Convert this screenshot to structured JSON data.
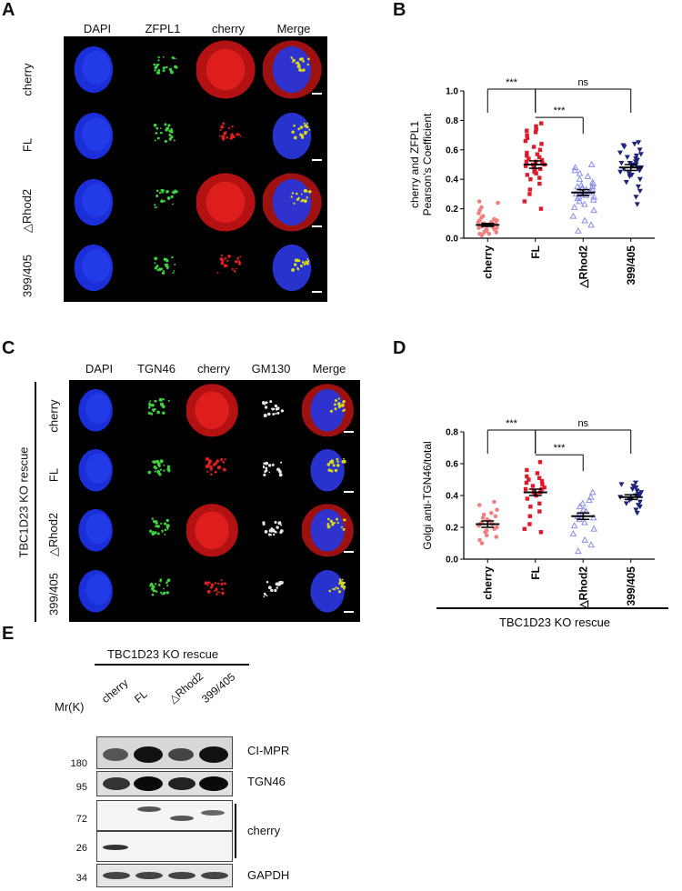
{
  "panels": {
    "A": "A",
    "B": "B",
    "C": "C",
    "D": "D",
    "E": "E"
  },
  "panelA": {
    "columns": [
      "DAPI",
      "ZFPL1",
      "cherry",
      "Merge"
    ],
    "rows": [
      "cherry",
      "FL",
      "△Rhod2",
      "399/405"
    ]
  },
  "panelC": {
    "columns": [
      "DAPI",
      "TGN46",
      "cherry",
      "GM130",
      "Merge"
    ],
    "rows": [
      "cherry",
      "FL",
      "△Rhod2",
      "399/405"
    ],
    "group_label": "TBC1D23 KO rescue"
  },
  "chart_data": [
    {
      "type": "scatter",
      "panel": "B",
      "ylabel": "cherry and ZFPL1\nPearson's Coefficient",
      "ylabel_lines": [
        "cherry and ZFPL1",
        "Pearson's Coefficient"
      ],
      "categories": [
        "cherry",
        "FL",
        "△Rhod2",
        "399/405"
      ],
      "yticks": [
        "0.0",
        "0.2",
        "0.4",
        "0.6",
        "0.8",
        "1.0"
      ],
      "ylim": [
        0,
        1.0
      ],
      "means": [
        0.09,
        0.5,
        0.31,
        0.48
      ],
      "sem": [
        0.01,
        0.025,
        0.02,
        0.02
      ],
      "colors": [
        "#f08080",
        "#e0192b",
        "#8a8ee6",
        "#1c237a"
      ],
      "markers": [
        "circle",
        "square",
        "triangle-up",
        "triangle-down"
      ],
      "points": [
        [
          0.02,
          0.03,
          0.04,
          0.05,
          0.05,
          0.06,
          0.06,
          0.07,
          0.07,
          0.08,
          0.08,
          0.08,
          0.09,
          0.09,
          0.1,
          0.1,
          0.1,
          0.11,
          0.12,
          0.12,
          0.13,
          0.14,
          0.15,
          0.17,
          0.19,
          0.21,
          0.24,
          0.25,
          0.04,
          0.06,
          0.03,
          0.11
        ],
        [
          0.2,
          0.25,
          0.3,
          0.33,
          0.37,
          0.4,
          0.41,
          0.43,
          0.44,
          0.46,
          0.47,
          0.48,
          0.49,
          0.5,
          0.5,
          0.51,
          0.52,
          0.53,
          0.54,
          0.55,
          0.56,
          0.57,
          0.58,
          0.6,
          0.62,
          0.64,
          0.66,
          0.68,
          0.7,
          0.72,
          0.73,
          0.74,
          0.76,
          0.78,
          0.45,
          0.52
        ],
        [
          0.05,
          0.09,
          0.12,
          0.15,
          0.19,
          0.21,
          0.23,
          0.25,
          0.26,
          0.27,
          0.28,
          0.29,
          0.3,
          0.3,
          0.31,
          0.31,
          0.32,
          0.33,
          0.34,
          0.35,
          0.36,
          0.37,
          0.38,
          0.4,
          0.42,
          0.44,
          0.46,
          0.48,
          0.5,
          0.3,
          0.33,
          0.28,
          0.35
        ],
        [
          0.23,
          0.28,
          0.32,
          0.35,
          0.38,
          0.4,
          0.42,
          0.43,
          0.44,
          0.45,
          0.46,
          0.47,
          0.48,
          0.48,
          0.49,
          0.5,
          0.5,
          0.51,
          0.52,
          0.53,
          0.54,
          0.55,
          0.56,
          0.57,
          0.58,
          0.6,
          0.62,
          0.63,
          0.64,
          0.65,
          0.47,
          0.51
        ]
      ],
      "annotations": [
        {
          "from": 0,
          "to": 1,
          "label": "***",
          "level": 1
        },
        {
          "from": 1,
          "to": 3,
          "label": "ns",
          "level": 1
        },
        {
          "from": 1,
          "to": 2,
          "label": "***",
          "level": 0
        }
      ]
    },
    {
      "type": "scatter",
      "panel": "D",
      "ylabel": "Golgi anti-TGN46/total",
      "categories": [
        "cherry",
        "FL",
        "△Rhod2",
        "399/405"
      ],
      "xgroup_label": "TBC1D23 KO rescue",
      "yticks": [
        "0.0",
        "0.2",
        "0.4",
        "0.6",
        "0.8"
      ],
      "ylim": [
        0,
        0.8
      ],
      "means": [
        0.22,
        0.42,
        0.27,
        0.39
      ],
      "sem": [
        0.02,
        0.02,
        0.02,
        0.015
      ],
      "colors": [
        "#f08080",
        "#e0192b",
        "#8a8ee6",
        "#1c237a"
      ],
      "markers": [
        "circle",
        "square",
        "triangle-up",
        "triangle-down"
      ],
      "points": [
        [
          0.1,
          0.12,
          0.14,
          0.15,
          0.17,
          0.18,
          0.19,
          0.2,
          0.21,
          0.22,
          0.22,
          0.23,
          0.24,
          0.25,
          0.26,
          0.27,
          0.28,
          0.29,
          0.31,
          0.34,
          0.36
        ],
        [
          0.17,
          0.19,
          0.22,
          0.27,
          0.3,
          0.33,
          0.35,
          0.38,
          0.4,
          0.41,
          0.42,
          0.43,
          0.44,
          0.45,
          0.46,
          0.47,
          0.48,
          0.49,
          0.5,
          0.51,
          0.52,
          0.54,
          0.56,
          0.61,
          0.42,
          0.44
        ],
        [
          0.05,
          0.09,
          0.12,
          0.16,
          0.19,
          0.21,
          0.23,
          0.25,
          0.26,
          0.27,
          0.28,
          0.3,
          0.31,
          0.33,
          0.35,
          0.37,
          0.39,
          0.42,
          0.28
        ],
        [
          0.29,
          0.31,
          0.33,
          0.34,
          0.35,
          0.36,
          0.37,
          0.38,
          0.38,
          0.39,
          0.4,
          0.41,
          0.42,
          0.43,
          0.44,
          0.45,
          0.46,
          0.47,
          0.48,
          0.39,
          0.4
        ]
      ],
      "annotations": [
        {
          "from": 0,
          "to": 1,
          "label": "***",
          "level": 1
        },
        {
          "from": 1,
          "to": 3,
          "label": "ns",
          "level": 1
        },
        {
          "from": 1,
          "to": 2,
          "label": "***",
          "level": 0
        }
      ]
    }
  ],
  "panelE": {
    "group_label": "TBC1D23 KO rescue",
    "lanes": [
      "cherry",
      "FL",
      "△Rhod2",
      "399/405"
    ],
    "mr_label": "Mr(K)",
    "blots": [
      {
        "label": "CI-MPR",
        "marker": "180"
      },
      {
        "label": "TGN46",
        "marker": "95"
      },
      {
        "label": "",
        "marker": "72"
      },
      {
        "label": "",
        "marker": "26"
      },
      {
        "label": "GAPDH",
        "marker": "34"
      }
    ],
    "cherry_label": "cherry"
  }
}
